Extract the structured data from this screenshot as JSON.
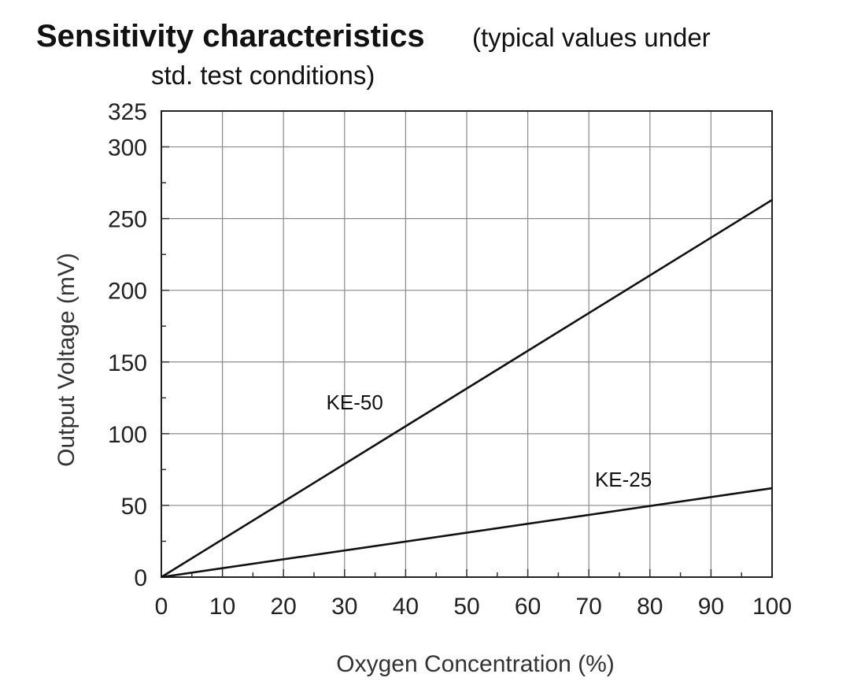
{
  "chart_data": {
    "type": "line",
    "title": "Sensitivity characteristics",
    "subtitle_line1": "(typical values under",
    "subtitle_line2": "std. test conditions)",
    "xlabel": "Oxygen Concentration (%)",
    "ylabel": "Output Voltage (mV)",
    "xlim": [
      0,
      100
    ],
    "ylim": [
      0,
      325
    ],
    "x_ticks": [
      0,
      10,
      20,
      30,
      40,
      50,
      60,
      70,
      80,
      90,
      100
    ],
    "y_ticks": [
      0,
      50,
      100,
      150,
      200,
      250,
      300,
      325
    ],
    "grid": true,
    "series": [
      {
        "name": "KE-50",
        "x": [
          0,
          100
        ],
        "y": [
          0,
          263
        ],
        "label_at": [
          27,
          117
        ]
      },
      {
        "name": "KE-25",
        "x": [
          0,
          100
        ],
        "y": [
          0,
          62
        ],
        "label_at": [
          71,
          63
        ]
      }
    ],
    "colors": {
      "line": "#111111",
      "grid": "#8a8a8a"
    }
  }
}
